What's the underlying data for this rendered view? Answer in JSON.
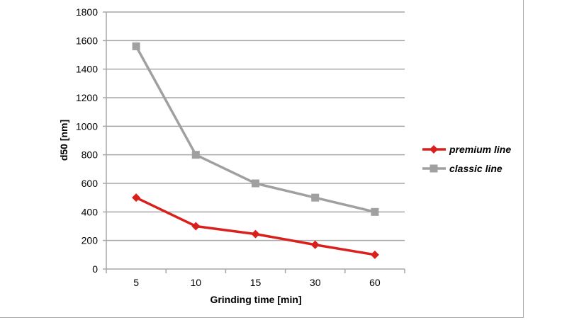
{
  "chart_data": {
    "type": "line",
    "categories": [
      "5",
      "10",
      "15",
      "30",
      "60"
    ],
    "series": [
      {
        "name": "premium line",
        "values": [
          500,
          300,
          245,
          170,
          100
        ],
        "color": "#d9201c",
        "marker": "diamond"
      },
      {
        "name": "classic line",
        "values": [
          1560,
          800,
          600,
          500,
          400
        ],
        "color": "#a0a0a0",
        "marker": "square"
      }
    ],
    "xlabel": "Grinding time [min]",
    "ylabel": "d50 [nm]",
    "ylim": [
      0,
      1800
    ],
    "yticks": [
      0,
      200,
      400,
      600,
      800,
      1000,
      1200,
      1400,
      1600,
      1800
    ],
    "grid": "horizontal",
    "legend": "right"
  }
}
